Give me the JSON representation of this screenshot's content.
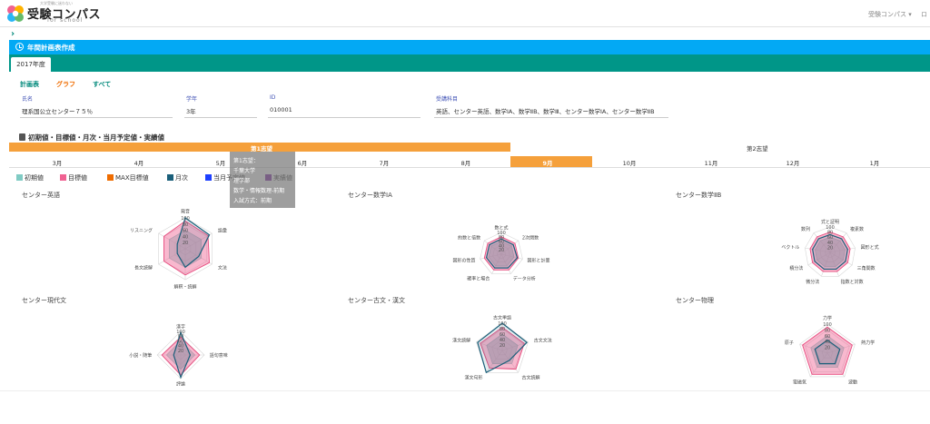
{
  "header": {
    "logo_tagline": "大学受験に迷わない",
    "logo_title": "受験コンパス",
    "logo_sub": "for school",
    "nav_menu": "受験コンパス ▾",
    "nav_more": "ロ"
  },
  "page": {
    "title": "年間計画表作成",
    "year_tab": "2017年度"
  },
  "filters": [
    "計画表",
    "グラフ",
    "すべて"
  ],
  "info": {
    "name_label": "氏名",
    "name_value": "理系国公立センター７５％",
    "grade_label": "学年",
    "grade_value": "3年",
    "id_label": "ID",
    "id_value": "010001",
    "subjects_label": "受講科目",
    "subjects_value": "英語、センター英語、数学ⅠA、数学ⅡB、数学Ⅲ、センター数学ⅠA、センター数学ⅡB"
  },
  "section_title": "初期値・目標値・月次・当月予定値・実績値",
  "choice_labels": {
    "first": "第1志望",
    "second": "第2志望"
  },
  "months": [
    "3月",
    "4月",
    "5月",
    "6月",
    "7月",
    "8月",
    "9月",
    "10月",
    "11月",
    "12月",
    "1月"
  ],
  "active_month": "9月",
  "legend": [
    {
      "label": "初期値",
      "color": "#80cbc4"
    },
    {
      "label": "目標値",
      "color": "#f06292"
    },
    {
      "label": "MAX目標値",
      "color": "#ef6c00"
    },
    {
      "label": "月次",
      "color": "#1a5f7a"
    },
    {
      "label": "当月予定値",
      "color": "#1e40ff"
    },
    {
      "label": "実績値",
      "color": "#7b1fa2"
    }
  ],
  "tooltip": {
    "line1": "第1志望：",
    "line2": "千葉大学",
    "line3": "理学部",
    "line4": "数学・情報数理-前期",
    "line5": "入試方式：前期"
  },
  "charts": [
    {
      "title": "センター英語",
      "labels": [
        "発音",
        "語彙",
        "文法",
        "解釈・読解",
        "長文読解",
        "リスニング"
      ],
      "scale": [
        "100",
        "80",
        "60",
        "40",
        "20"
      ],
      "target": [
        0.9,
        0.85,
        0.9,
        0.85,
        0.8,
        0.8
      ],
      "monthly": [
        1.0,
        0.9,
        0.5,
        0.6,
        0.3,
        0.3
      ]
    },
    {
      "title": "センター数学ⅠA",
      "labels": [
        "数と式",
        "2次関数",
        "図形と計量",
        "データ分析",
        "確率と場合",
        "図形の性質",
        "約数と倍数"
      ],
      "scale": [
        "100",
        "80",
        "60",
        "40",
        "20"
      ],
      "target": [
        0.8,
        0.8,
        0.8,
        0.8,
        0.8,
        0.8,
        0.8
      ],
      "monthly": [
        0.7,
        0.7,
        0.75,
        0.7,
        0.7,
        0.7,
        0.7
      ]
    },
    {
      "title": "センター数学ⅡB",
      "labels": [
        "式と証明",
        "複素数",
        "図形と式",
        "三角関数",
        "指数と対数",
        "微分法",
        "積分法",
        "ベクトル",
        "数列"
      ],
      "scale": [
        "100",
        "80",
        "60",
        "40",
        "20"
      ],
      "target": [
        0.8,
        0.8,
        0.8,
        0.8,
        0.8,
        0.8,
        0.8,
        0.8,
        0.8
      ],
      "monthly": [
        0.7,
        0.7,
        0.7,
        0.7,
        0.7,
        0.7,
        0.7,
        0.7,
        0.7
      ]
    },
    {
      "title": "センター現代文",
      "labels": [
        "漢字",
        "語句意味",
        "評論",
        "小説・随筆"
      ],
      "scale": [
        "100",
        "80",
        "60",
        "40",
        "20"
      ],
      "target": [
        0.75,
        0.8,
        0.85,
        0.8
      ],
      "monthly": [
        0.95,
        0.4,
        0.95,
        0.3
      ]
    },
    {
      "title": "センター古文・漢文",
      "labels": [
        "古文単語",
        "古文文法",
        "古文読解",
        "漢文句形",
        "漢文読解"
      ],
      "scale": [
        "100",
        "80",
        "60",
        "40",
        "20"
      ],
      "target": [
        0.85,
        0.85,
        0.85,
        0.8,
        0.85
      ],
      "monthly": [
        1.0,
        0.95,
        0.45,
        1.0,
        0.95
      ]
    },
    {
      "title": "センター物理",
      "labels": [
        "力学",
        "熱力学",
        "波動",
        "電磁気",
        "原子"
      ],
      "scale": [
        "100",
        "80",
        "60",
        "40",
        "20"
      ],
      "target": [
        0.9,
        0.9,
        0.9,
        0.9,
        0.9
      ],
      "monthly": [
        0.45,
        0.45,
        0.45,
        0.45,
        0.45
      ]
    }
  ]
}
